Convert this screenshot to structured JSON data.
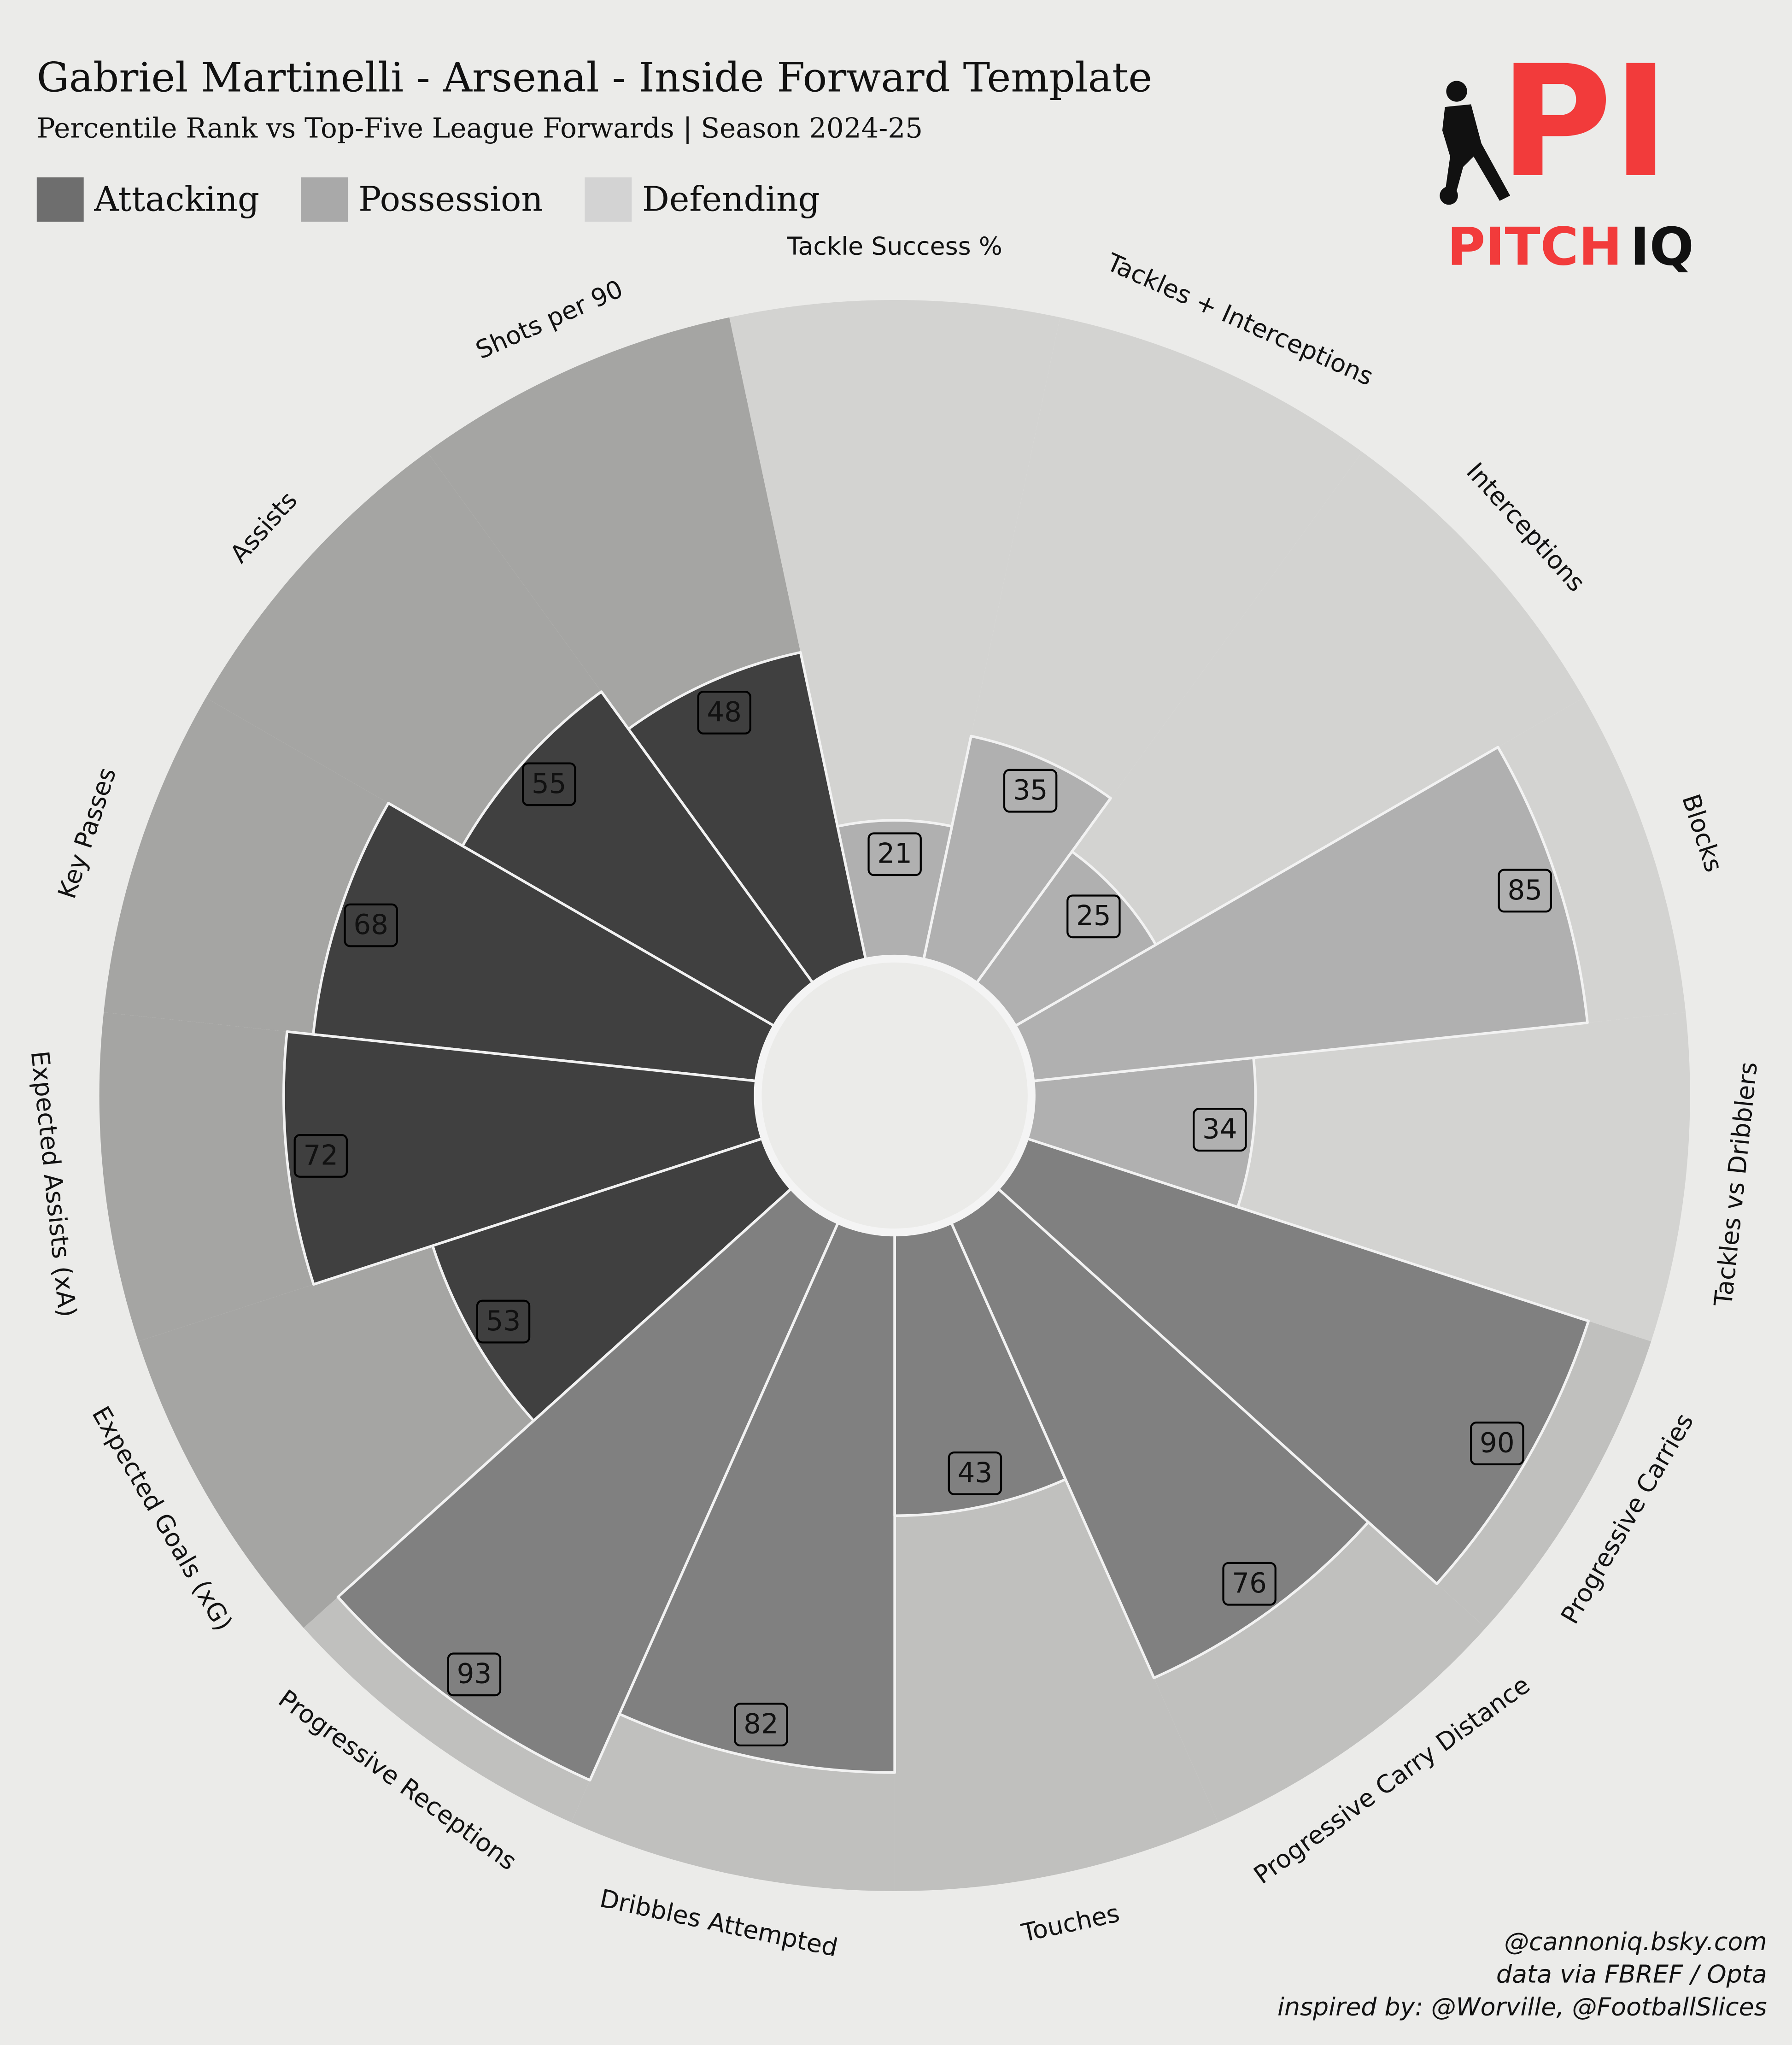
{
  "chart_data": {
    "type": "polar_bar",
    "title": "Gabriel Martinelli - Arsenal - Inside Forward Template",
    "subtitle": "Percentile Rank vs Top-Five League Forwards | Season 2024-25",
    "ylim": [
      0,
      100
    ],
    "series": [
      {
        "name": "Attacking",
        "color": "#404040",
        "slice_color": "#a5a5a3",
        "legend_color": "#6e6e6e",
        "categories": [
          "Shots per 90",
          "Assists",
          "Key Passes",
          "Expected Assists (xA)",
          "Expected Goals (xG)"
        ],
        "values": [
          48,
          55,
          68,
          72,
          53
        ]
      },
      {
        "name": "Possession",
        "color": "#808080",
        "slice_color": "#c0c0be",
        "legend_color": "#a9a9a9",
        "categories": [
          "Progressive Receptions",
          "Dribbles Attempted",
          "Touches",
          "Progressive Carry Distance",
          "Progressive Carries"
        ],
        "values": [
          93,
          82,
          43,
          76,
          90
        ]
      },
      {
        "name": "Defending",
        "color": "#b0b0b0",
        "slice_color": "#d3d3d1",
        "legend_color": "#d3d3d3",
        "categories": [
          "Tackles vs Dribblers",
          "Blocks",
          "Interceptions",
          "Tackles + Interceptions",
          "Tackle Success %"
        ],
        "values": [
          34,
          85,
          25,
          35,
          21
        ]
      }
    ]
  },
  "logo": {
    "mark": "PI",
    "word_1": "PITCH",
    "word_2": "IQ"
  },
  "credits": [
    "@cannoniq.bsky.com",
    "data via FBREF / Opta",
    "inspired by: @Worville, @FootballSlices"
  ]
}
